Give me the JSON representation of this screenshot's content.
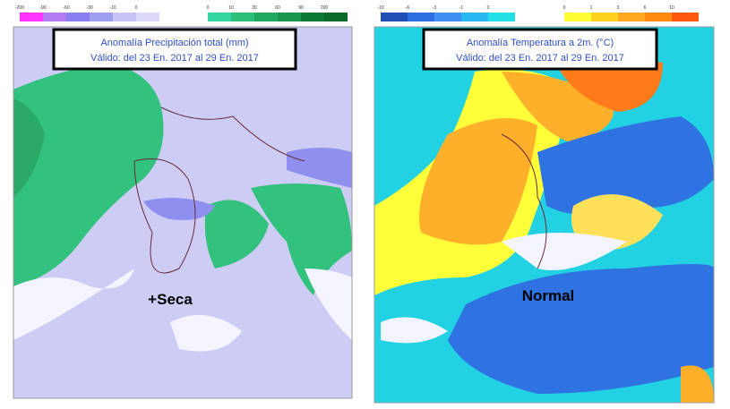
{
  "panels": [
    {
      "title_line1": "Anomalía Precipitación total (mm)",
      "title_line2": "Válido: del 23 En. 2017 al 29 En. 2017",
      "legend_low": {
        "labels": [
          -200,
          -90,
          -60,
          -30,
          -10,
          0
        ],
        "colors": [
          "#ff33ff",
          "#b57cf2",
          "#8a7ff0",
          "#9f9ff2",
          "#c8c4f5",
          "#dcdaf8"
        ]
      },
      "legend_high": {
        "labels": [
          0,
          10,
          30,
          60,
          90,
          200
        ],
        "colors": [
          "#33d6a0",
          "#2bbf78",
          "#1fa85e",
          "#17964e",
          "#0d7a35",
          "#0a6a2a"
        ]
      },
      "label": "+Seca"
    },
    {
      "title_line1": "Anomalía Temperatura a 2m. (°C)",
      "title_line2": "Válido: del 23 En. 2017 al 29 En. 2017",
      "legend_low": {
        "labels": [
          -10,
          -6,
          -3,
          -1,
          0
        ],
        "colors": [
          "#1f4fb4",
          "#2d6fe0",
          "#3f90f0",
          "#2ab8f0",
          "#22e0e6"
        ]
      },
      "legend_high": {
        "labels": [
          0,
          1,
          3,
          6,
          10
        ],
        "colors": [
          "#ffff33",
          "#ffd21f",
          "#ffa820",
          "#ff8a10",
          "#ff5a10"
        ]
      },
      "label": "Normal"
    }
  ]
}
